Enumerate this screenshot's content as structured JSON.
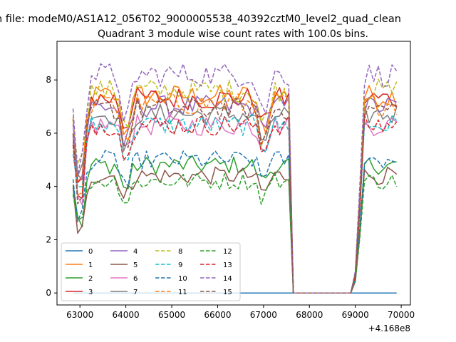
{
  "chart_data": {
    "type": "line",
    "suptitle": "n file: modeM0/AS1A12_056T02_9000005538_40392cztM0_level2_quad_clean",
    "title": "Quadrant 3 module wise count rates with 100.0s bins.",
    "xlabel": "",
    "ylabel": "",
    "x_offset_label": "+4.168e8",
    "xlim": [
      62500,
      70200
    ],
    "ylim": [
      -0.45,
      9.45
    ],
    "xticks": [
      63000,
      64000,
      65000,
      66000,
      67000,
      68000,
      69000,
      70000
    ],
    "yticks": [
      0,
      2,
      4,
      6,
      8
    ],
    "grid": false,
    "legend_position": "lower-left",
    "legend_columns": 4,
    "series": [
      {
        "name": "0",
        "color": "#1f77b4",
        "dash": "solid",
        "level": 0.0
      },
      {
        "name": "1",
        "color": "#ff7f0e",
        "dash": "solid",
        "level": 7.4
      },
      {
        "name": "2",
        "color": "#2ca02c",
        "dash": "solid",
        "level": 4.8
      },
      {
        "name": "3",
        "color": "#d62728",
        "dash": "solid",
        "level": 7.3
      },
      {
        "name": "4",
        "color": "#9467bd",
        "dash": "solid",
        "level": 7.0
      },
      {
        "name": "5",
        "color": "#8c564b",
        "dash": "solid",
        "level": 4.4
      },
      {
        "name": "6",
        "color": "#e377c2",
        "dash": "solid",
        "level": 6.3
      },
      {
        "name": "7",
        "color": "#7f7f7f",
        "dash": "solid",
        "level": 6.7
      },
      {
        "name": "8",
        "color": "#bcbd22",
        "dash": "dashed",
        "level": 7.6
      },
      {
        "name": "9",
        "color": "#17becf",
        "dash": "dashed",
        "level": 6.3
      },
      {
        "name": "10",
        "color": "#1f77b4",
        "dash": "dashed",
        "level": 5.0
      },
      {
        "name": "11",
        "color": "#ff7f0e",
        "dash": "dashed",
        "level": 7.1
      },
      {
        "name": "12",
        "color": "#2ca02c",
        "dash": "dashed",
        "level": 4.2
      },
      {
        "name": "13",
        "color": "#d62728",
        "dash": "dashed",
        "level": 6.3
      },
      {
        "name": "14",
        "color": "#9467bd",
        "dash": "dashed",
        "level": 8.2
      },
      {
        "name": "15",
        "color": "#8c564b",
        "dash": "dashed",
        "level": 6.9
      }
    ],
    "segments": [
      {
        "x_start": 62850,
        "x_end": 67500,
        "state": "active"
      },
      {
        "x_start": 67650,
        "x_end": 68900,
        "state": "zero"
      },
      {
        "x_start": 69000,
        "x_end": 69850,
        "state": "active"
      }
    ],
    "dips": [
      {
        "x": 63000,
        "depth": 0.5
      },
      {
        "x": 64000,
        "depth": 0.2
      },
      {
        "x": 67000,
        "depth": 0.18
      }
    ]
  }
}
